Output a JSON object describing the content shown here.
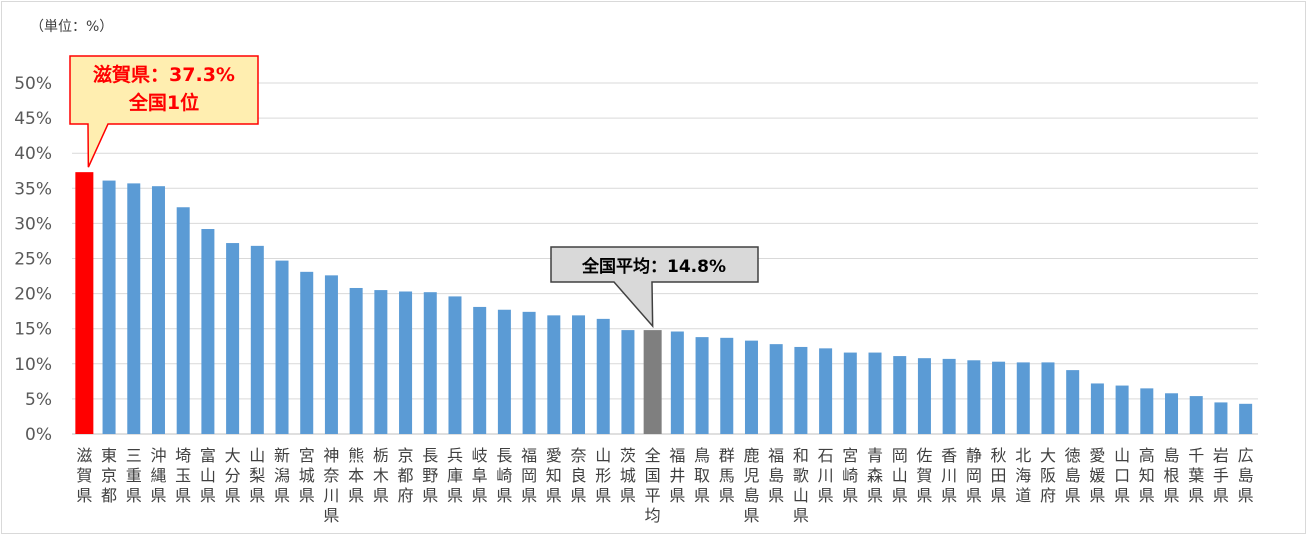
{
  "chart_data": {
    "type": "bar",
    "unit_label": "（単位：%）",
    "y_ticks": [
      "0%",
      "5%",
      "10%",
      "15%",
      "20%",
      "25%",
      "30%",
      "35%",
      "40%",
      "45%",
      "50%"
    ],
    "ylim": [
      0,
      50
    ],
    "grid": true,
    "categories": [
      "滋賀県",
      "東京都",
      "三重県",
      "沖縄県",
      "埼玉県",
      "富山県",
      "大分県",
      "山梨県",
      "新潟県",
      "宮城県",
      "神奈川県",
      "熊本県",
      "栃木県",
      "京都府",
      "長野県",
      "兵庫県",
      "岐阜県",
      "長崎県",
      "福岡県",
      "愛知県",
      "奈良県",
      "山形県",
      "茨城県",
      "全国平均",
      "福井県",
      "鳥取県",
      "群馬県",
      "鹿児島県",
      "福島県",
      "和歌山県",
      "石川県",
      "宮崎県",
      "青森県",
      "岡山県",
      "佐賀県",
      "香川県",
      "静岡県",
      "秋田県",
      "北海道",
      "大阪府",
      "徳島県",
      "愛媛県",
      "山口県",
      "高知県",
      "島根県",
      "千葉県",
      "岩手県",
      "広島県"
    ],
    "values": [
      37.3,
      36.1,
      35.7,
      35.3,
      32.3,
      29.2,
      27.2,
      26.8,
      24.7,
      23.1,
      22.6,
      20.8,
      20.5,
      20.3,
      20.2,
      19.6,
      18.1,
      17.7,
      17.4,
      16.9,
      16.9,
      16.4,
      14.8,
      14.8,
      14.6,
      13.8,
      13.7,
      13.3,
      12.8,
      12.4,
      12.2,
      11.6,
      11.6,
      11.1,
      10.8,
      10.7,
      10.5,
      10.3,
      10.2,
      10.2,
      9.1,
      7.2,
      6.9,
      6.5,
      5.8,
      5.4,
      4.5,
      4.3
    ],
    "colors": {
      "bar": "#5b9bd5",
      "highlight": "#ff0000",
      "average": "#7f7f7f",
      "grid": "#d9d9d9",
      "axis": "#bfbfbf"
    },
    "annotations": [
      {
        "target": "滋賀県",
        "lines": [
          "滋賀県：37.3%",
          "全国1位"
        ],
        "text_color": "#ff0000",
        "fill": "#ffeeb0",
        "border": "#ff0000"
      },
      {
        "target": "全国平均",
        "lines": [
          "全国平均：14.8%"
        ],
        "text_color": "#000000",
        "fill": "#d9d9d9",
        "border": "#404040"
      }
    ]
  }
}
